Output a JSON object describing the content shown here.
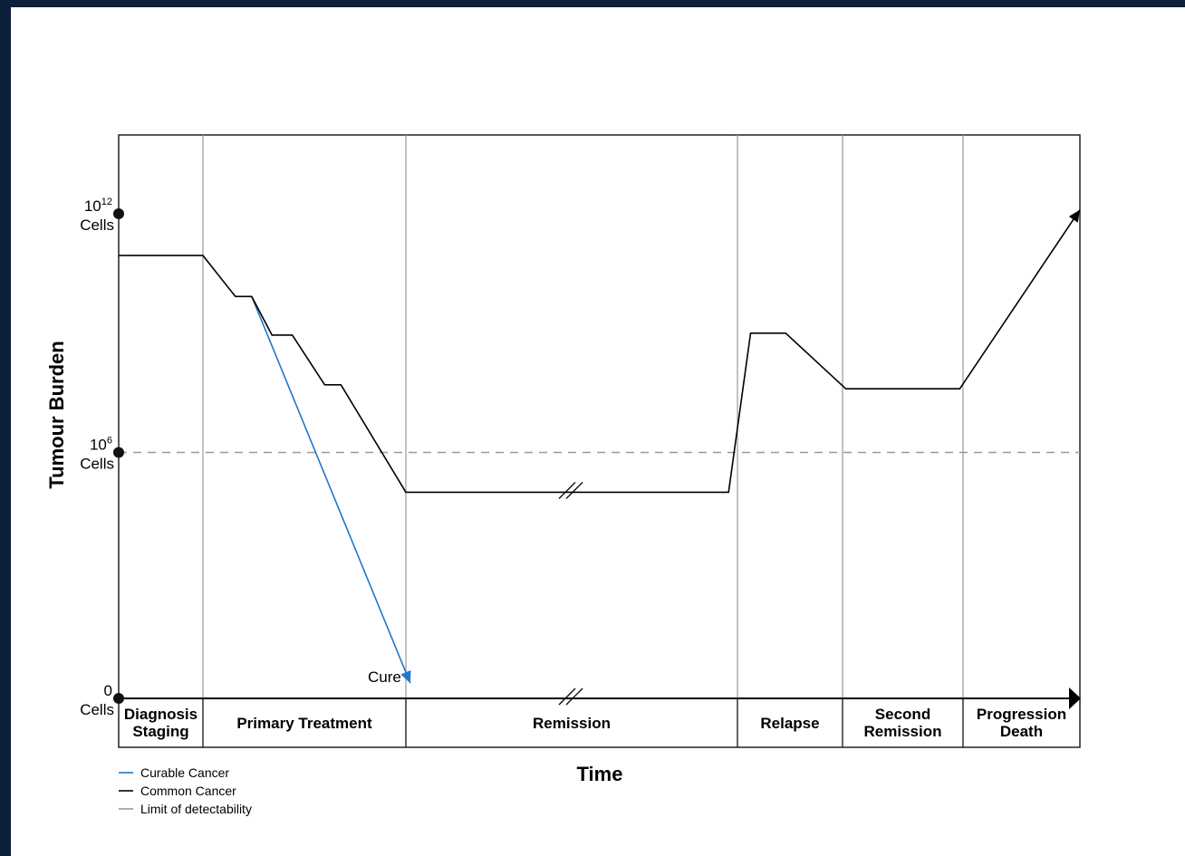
{
  "chart_data": {
    "type": "line",
    "xlabel": "Time",
    "ylabel": "Tumour Burden",
    "y_ticks": [
      {
        "value": 12,
        "base": "10",
        "exp": "12",
        "unit": "Cells"
      },
      {
        "value": 6,
        "base": "10",
        "exp": "6",
        "unit": "Cells"
      },
      {
        "value": 0,
        "base": "0",
        "exp": "",
        "unit": "Cells"
      }
    ],
    "ylim": [
      0,
      14
    ],
    "phases": [
      {
        "lines": [
          "Diagnosis",
          "Staging"
        ]
      },
      {
        "lines": [
          "Primary Treatment"
        ]
      },
      {
        "lines": [
          "Remission"
        ]
      },
      {
        "lines": [
          "Relapse"
        ]
      },
      {
        "lines": [
          "Second",
          "Remission"
        ]
      },
      {
        "lines": [
          "Progression",
          "Death"
        ]
      }
    ],
    "detection_limit": 6,
    "series": [
      {
        "name": "Curable Cancer",
        "color": "#1f78c8",
        "points": [
          [
            1.55,
            9.92
          ],
          [
            3.5,
            0.2
          ]
        ]
      },
      {
        "name": "Common Cancer",
        "color": "#000000",
        "points": [
          [
            0,
            10.95
          ],
          [
            0.95,
            10.95
          ],
          [
            1.35,
            9.92
          ],
          [
            1.55,
            9.92
          ],
          [
            1.8,
            8.95
          ],
          [
            2.05,
            8.95
          ],
          [
            2.45,
            7.7
          ],
          [
            2.65,
            7.7
          ],
          [
            3.45,
            5.0
          ],
          [
            7.1,
            5.0
          ],
          [
            7.35,
            9.0
          ],
          [
            7.75,
            9.0
          ],
          [
            8.45,
            7.6
          ],
          [
            8.9,
            7.6
          ],
          [
            10.2,
            7.6
          ],
          [
            11.4,
            12.1
          ]
        ]
      }
    ],
    "annotations": [
      {
        "text": "Cure",
        "x": 3.5,
        "y": 0.2
      }
    ],
    "legend": {
      "position": "bottom-left",
      "entries": [
        {
          "label": "Curable Cancer",
          "color": "#1f78c8",
          "style": "solid"
        },
        {
          "label": "Common Cancer",
          "color": "#000000",
          "style": "solid"
        },
        {
          "label": "Limit of detectability",
          "color": "#999999",
          "style": "solid"
        }
      ]
    },
    "grid": false
  }
}
